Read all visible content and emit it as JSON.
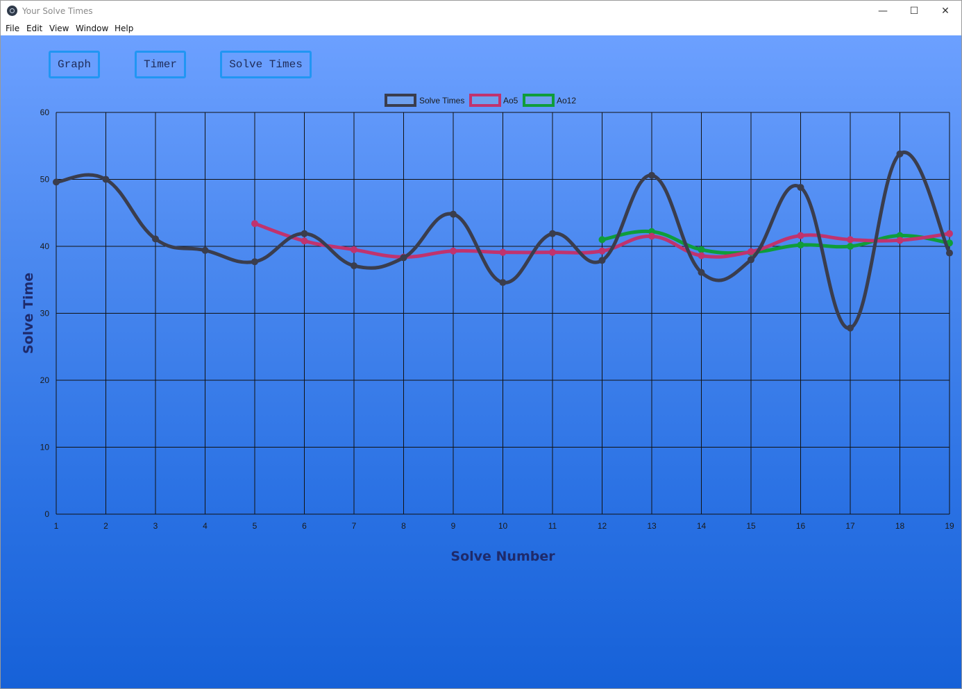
{
  "window": {
    "title": "Your Solve Times",
    "controls": {
      "minimize": "—",
      "maximize": "☐",
      "close": "✕"
    }
  },
  "menu": [
    "File",
    "Edit",
    "View",
    "Window",
    "Help"
  ],
  "nav": {
    "graph": "Graph",
    "timer": "Timer",
    "solve_times": "Solve Times"
  },
  "colors": {
    "solve_times": "#3a3d4d",
    "ao5": "#c0336e",
    "ao12": "#0f9d3a",
    "legend_fill": "#6ea0ee"
  },
  "chart_data": {
    "type": "line",
    "xlabel": "Solve Number",
    "ylabel": "Solve Time",
    "ylim": [
      0,
      60
    ],
    "yticks": [
      0,
      10,
      20,
      30,
      40,
      50,
      60
    ],
    "x": [
      1,
      2,
      3,
      4,
      5,
      6,
      7,
      8,
      9,
      10,
      11,
      12,
      13,
      14,
      15,
      16,
      17,
      18,
      19
    ],
    "grid": true,
    "legend_position": "top-center",
    "series": [
      {
        "name": "Solve Times",
        "values": [
          49.6,
          50.0,
          41.1,
          39.4,
          37.7,
          41.9,
          37.1,
          38.3,
          44.8,
          34.6,
          41.9,
          37.9,
          50.6,
          36.1,
          38.0,
          48.8,
          27.8,
          53.8,
          39.0
        ]
      },
      {
        "name": "Ao5",
        "values": [
          null,
          null,
          null,
          null,
          43.4,
          40.8,
          39.5,
          38.4,
          39.3,
          39.1,
          39.1,
          39.3,
          41.5,
          38.6,
          39.2,
          41.6,
          41.0,
          40.9,
          41.9
        ]
      },
      {
        "name": "Ao12",
        "values": [
          null,
          null,
          null,
          null,
          null,
          null,
          null,
          null,
          null,
          null,
          null,
          41.0,
          42.2,
          39.5,
          39.1,
          40.2,
          40.0,
          41.6,
          40.5
        ]
      }
    ]
  }
}
